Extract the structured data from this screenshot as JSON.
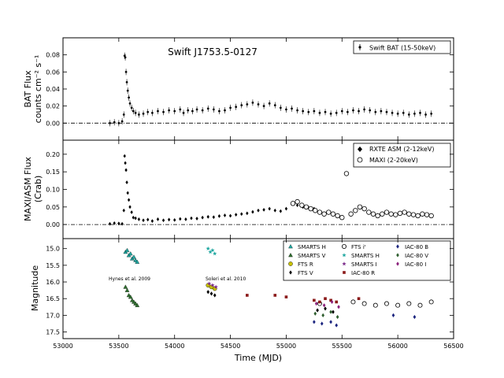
{
  "figure": {
    "title": "Swift J1753.5-0127",
    "xlabel": "Time (MJD)",
    "xlim": [
      53000,
      56500
    ],
    "xticks": [
      "53000",
      "53500",
      "54000",
      "54500",
      "55000",
      "55500",
      "56000",
      "56500"
    ]
  },
  "chart_data": [
    {
      "type": "scatter",
      "title": "Swift J1753.5-0127",
      "ylabel": "BAT Flux counts cm^-2 s^-1",
      "ylabel_lines": [
        "BAT Flux",
        "counts cm⁻² s⁻¹"
      ],
      "ylim": [
        -0.02,
        0.1
      ],
      "yticks": [
        0.0,
        0.02,
        0.04,
        0.06,
        0.08
      ],
      "ytick_labels": [
        "0.00",
        "0.02",
        "0.04",
        "0.06",
        "0.08"
      ],
      "zero_line": true,
      "legend_position": "top-right",
      "series": [
        {
          "name": "Swift BAT (15-50keV)",
          "marker": "dot-errorbar",
          "color": "#000000",
          "x": [
            53420,
            53460,
            53500,
            53530,
            53545,
            53552,
            53558,
            53565,
            53572,
            53580,
            53590,
            53600,
            53615,
            53630,
            53650,
            53680,
            53720,
            53760,
            53800,
            53850,
            53900,
            53950,
            54000,
            54050,
            54080,
            54120,
            54160,
            54200,
            54250,
            54300,
            54350,
            54400,
            54450,
            54500,
            54550,
            54600,
            54650,
            54700,
            54750,
            54800,
            54850,
            54900,
            54950,
            55000,
            55050,
            55100,
            55150,
            55200,
            55250,
            55300,
            55350,
            55400,
            55450,
            55500,
            55550,
            55600,
            55650,
            55700,
            55750,
            55800,
            55850,
            55900,
            55950,
            56000,
            56050,
            56100,
            56150,
            56200,
            56250,
            56300
          ],
          "y": [
            0.0,
            0.001,
            0.0,
            0.002,
            0.01,
            0.079,
            0.077,
            0.06,
            0.048,
            0.038,
            0.03,
            0.023,
            0.018,
            0.014,
            0.012,
            0.01,
            0.011,
            0.013,
            0.012,
            0.014,
            0.013,
            0.015,
            0.014,
            0.016,
            0.012,
            0.015,
            0.014,
            0.016,
            0.015,
            0.017,
            0.016,
            0.014,
            0.015,
            0.018,
            0.019,
            0.021,
            0.022,
            0.024,
            0.022,
            0.02,
            0.023,
            0.021,
            0.018,
            0.016,
            0.017,
            0.015,
            0.014,
            0.013,
            0.014,
            0.012,
            0.013,
            0.011,
            0.012,
            0.014,
            0.013,
            0.015,
            0.014,
            0.016,
            0.015,
            0.013,
            0.014,
            0.013,
            0.012,
            0.011,
            0.012,
            0.01,
            0.011,
            0.012,
            0.01,
            0.011
          ]
        }
      ]
    },
    {
      "type": "scatter",
      "ylabel": "MAXI/ASM Flux (Crab)",
      "ylabel_lines": [
        "MAXI/ASM Flux",
        "(Crab)"
      ],
      "ylim": [
        -0.04,
        0.24
      ],
      "yticks": [
        0.0,
        0.05,
        0.1,
        0.15,
        0.2
      ],
      "ytick_labels": [
        "0.00",
        "0.05",
        "0.10",
        "0.15",
        "0.20"
      ],
      "zero_line": true,
      "legend_position": "top-right",
      "series": [
        {
          "name": "RXTE ASM (2-12keV)",
          "marker": "diamond",
          "color": "#000000",
          "x": [
            53420,
            53460,
            53500,
            53530,
            53545,
            53552,
            53558,
            53565,
            53572,
            53580,
            53590,
            53600,
            53615,
            53630,
            53650,
            53680,
            53720,
            53760,
            53800,
            53850,
            53900,
            53950,
            54000,
            54050,
            54100,
            54150,
            54200,
            54250,
            54300,
            54350,
            54400,
            54450,
            54500,
            54550,
            54600,
            54650,
            54700,
            54750,
            54800,
            54850,
            54900,
            54950,
            55000,
            55050,
            55100,
            55150,
            55200,
            55250
          ],
          "y": [
            0.002,
            0.004,
            0.003,
            0.002,
            0.04,
            0.195,
            0.175,
            0.155,
            0.12,
            0.09,
            0.07,
            0.05,
            0.035,
            0.02,
            0.018,
            0.015,
            0.012,
            0.014,
            0.01,
            0.015,
            0.012,
            0.014,
            0.013,
            0.016,
            0.015,
            0.018,
            0.017,
            0.02,
            0.022,
            0.021,
            0.024,
            0.026,
            0.025,
            0.028,
            0.03,
            0.032,
            0.036,
            0.04,
            0.042,
            0.045,
            0.04,
            0.038,
            0.045,
            0.06,
            0.055,
            0.05,
            0.048,
            0.045
          ]
        },
        {
          "name": "MAXI (2-20keV)",
          "marker": "open-circle",
          "color": "#000000",
          "x": [
            55060,
            55100,
            55140,
            55180,
            55220,
            55260,
            55300,
            55340,
            55380,
            55420,
            55460,
            55500,
            55540,
            55580,
            55620,
            55660,
            55700,
            55740,
            55780,
            55820,
            55860,
            55900,
            55940,
            55980,
            56020,
            56060,
            56100,
            56140,
            56180,
            56220,
            56260,
            56300
          ],
          "y": [
            0.06,
            0.065,
            0.055,
            0.05,
            0.045,
            0.04,
            0.035,
            0.03,
            0.035,
            0.03,
            0.025,
            0.02,
            0.145,
            0.03,
            0.04,
            0.05,
            0.045,
            0.035,
            0.03,
            0.025,
            0.03,
            0.035,
            0.03,
            0.028,
            0.032,
            0.035,
            0.03,
            0.028,
            0.025,
            0.03,
            0.028,
            0.025
          ]
        }
      ]
    },
    {
      "type": "scatter",
      "ylabel": "Magnitude",
      "ylim": [
        17.7,
        14.7
      ],
      "inverted_y": true,
      "yticks": [
        15.0,
        15.5,
        16.0,
        16.5,
        17.0,
        17.5
      ],
      "ytick_labels": [
        "15.0",
        "15.5",
        "16.0",
        "16.5",
        "17.0",
        "17.5"
      ],
      "legend_position": "top-right",
      "annotations": [
        "Hynes et al. 2009",
        "Soleri et al. 2010"
      ],
      "series": [
        {
          "name": "SMARTS H",
          "marker": "triangle",
          "color": "#1fa7a0",
          "x": [
            53560,
            53575,
            53590,
            53605,
            53620,
            53635,
            53650,
            53665
          ],
          "y": [
            15.1,
            15.05,
            15.2,
            15.15,
            15.3,
            15.25,
            15.35,
            15.4
          ]
        },
        {
          "name": "SMARTS V",
          "marker": "triangle",
          "color": "#2f6f2f",
          "x": [
            53560,
            53575,
            53590,
            53605,
            53620,
            53635,
            53650,
            53665
          ],
          "y": [
            16.15,
            16.25,
            16.4,
            16.45,
            16.55,
            16.6,
            16.65,
            16.7
          ]
        },
        {
          "name": "FTS R",
          "marker": "circle",
          "color": "#c9c200",
          "x": [
            54300,
            54330,
            54360
          ],
          "y": [
            16.1,
            16.15,
            16.2
          ]
        },
        {
          "name": "FTS V",
          "marker": "diamond",
          "color": "#000000",
          "x": [
            54300,
            54330,
            54360,
            55280,
            55350,
            55420
          ],
          "y": [
            16.3,
            16.35,
            16.4,
            16.85,
            16.8,
            16.9
          ]
        },
        {
          "name": "FTS i'",
          "marker": "open-circle",
          "color": "#000000",
          "x": [
            55300,
            55600,
            55700,
            55800,
            55900,
            56000,
            56100,
            56200,
            56300
          ],
          "y": [
            16.65,
            16.6,
            16.65,
            16.7,
            16.65,
            16.7,
            16.65,
            16.7,
            16.6
          ]
        },
        {
          "name": "SMARTS H",
          "marker": "star",
          "color": "#1fa7a0",
          "x": [
            54300,
            54320,
            54340,
            54360
          ],
          "y": [
            15.0,
            15.1,
            15.05,
            15.15
          ]
        },
        {
          "name": "SMARTS I",
          "marker": "star",
          "color": "#7a2a8a",
          "x": [
            54310,
            54340,
            54370
          ],
          "y": [
            16.05,
            16.1,
            16.15
          ]
        },
        {
          "name": "IAC-80 R",
          "marker": "square",
          "color": "#8b1a1a",
          "x": [
            54650,
            54900,
            55000,
            55250,
            55300,
            55350,
            55400,
            55450,
            55650
          ],
          "y": [
            16.4,
            16.4,
            16.45,
            16.55,
            16.6,
            16.5,
            16.55,
            16.6,
            16.5
          ]
        },
        {
          "name": "IAC-80 B",
          "marker": "diamond",
          "color": "#1a237e",
          "x": [
            55250,
            55320,
            55400,
            55450,
            55960,
            56150
          ],
          "y": [
            17.2,
            17.25,
            17.2,
            17.3,
            17.0,
            17.05
          ]
        },
        {
          "name": "IAC-80 V",
          "marker": "diamond",
          "color": "#2e5e2e",
          "x": [
            55260,
            55330,
            55400,
            55460
          ],
          "y": [
            16.95,
            17.0,
            16.9,
            17.05
          ]
        },
        {
          "name": "IAC-80 I",
          "marker": "diamond",
          "color": "#8a1f7a",
          "x": [
            55270,
            55340,
            55410,
            55470
          ],
          "y": [
            16.65,
            16.7,
            16.6,
            16.75
          ]
        }
      ]
    }
  ]
}
